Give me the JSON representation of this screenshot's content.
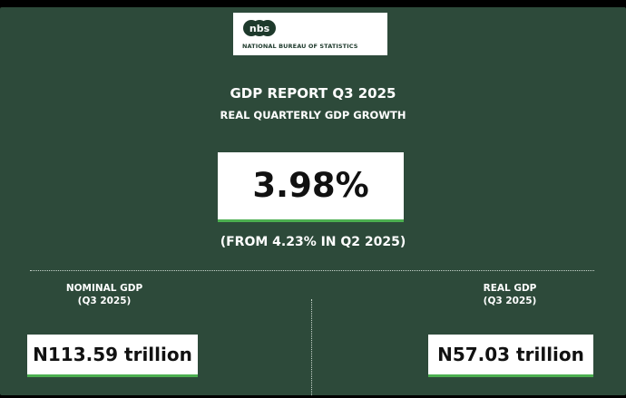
{
  "header": {
    "logo_initials": "nbs",
    "logo_text": "NATIONAL BUREAU OF STATISTICS"
  },
  "report": {
    "title": "GDP REPORT Q3 2025",
    "subtitle": "REAL QUARTERLY GDP GROWTH",
    "growth_value": "3.98%",
    "comparison": "(FROM 4.23% IN Q2 2025)"
  },
  "nominal": {
    "label": "NOMINAL GDP",
    "period": "(Q3 2025)",
    "value": "N113.59 trillion"
  },
  "real": {
    "label": "REAL GDP",
    "period": "(Q3 2025)",
    "value": "N57.03 trillion"
  },
  "colors": {
    "background": "#2d4a3a",
    "accent": "#4caf50"
  }
}
